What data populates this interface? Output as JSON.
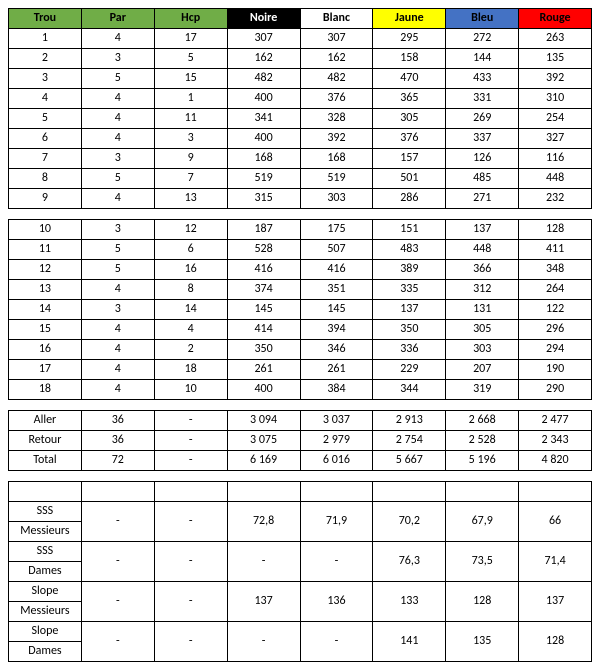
{
  "colors": {
    "green": "#70ad47",
    "black": "#000000",
    "white": "#ffffff",
    "yellow": "#ffff00",
    "blue": "#4472c4",
    "red": "#ff0000"
  },
  "headers": {
    "trou": {
      "label": "Trou",
      "bg": "#70ad47",
      "fg": "#000000"
    },
    "par": {
      "label": "Par",
      "bg": "#70ad47",
      "fg": "#000000"
    },
    "hcp": {
      "label": "Hcp",
      "bg": "#70ad47",
      "fg": "#000000"
    },
    "noire": {
      "label": "Noire",
      "bg": "#000000",
      "fg": "#ffffff"
    },
    "blanc": {
      "label": "Blanc",
      "bg": "#ffffff",
      "fg": "#000000"
    },
    "jaune": {
      "label": "Jaune",
      "bg": "#ffff00",
      "fg": "#000000"
    },
    "bleu": {
      "label": "Bleu",
      "bg": "#4472c4",
      "fg": "#000000"
    },
    "rouge": {
      "label": "Rouge",
      "bg": "#ff0000",
      "fg": "#000000"
    }
  },
  "front9": [
    {
      "trou": "1",
      "par": "4",
      "hcp": "17",
      "noire": "307",
      "blanc": "307",
      "jaune": "295",
      "bleu": "272",
      "rouge": "263"
    },
    {
      "trou": "2",
      "par": "3",
      "hcp": "5",
      "noire": "162",
      "blanc": "162",
      "jaune": "158",
      "bleu": "144",
      "rouge": "135"
    },
    {
      "trou": "3",
      "par": "5",
      "hcp": "15",
      "noire": "482",
      "blanc": "482",
      "jaune": "470",
      "bleu": "433",
      "rouge": "392"
    },
    {
      "trou": "4",
      "par": "4",
      "hcp": "1",
      "noire": "400",
      "blanc": "376",
      "jaune": "365",
      "bleu": "331",
      "rouge": "310"
    },
    {
      "trou": "5",
      "par": "4",
      "hcp": "11",
      "noire": "341",
      "blanc": "328",
      "jaune": "305",
      "bleu": "269",
      "rouge": "254"
    },
    {
      "trou": "6",
      "par": "4",
      "hcp": "3",
      "noire": "400",
      "blanc": "392",
      "jaune": "376",
      "bleu": "337",
      "rouge": "327"
    },
    {
      "trou": "7",
      "par": "3",
      "hcp": "9",
      "noire": "168",
      "blanc": "168",
      "jaune": "157",
      "bleu": "126",
      "rouge": "116"
    },
    {
      "trou": "8",
      "par": "5",
      "hcp": "7",
      "noire": "519",
      "blanc": "519",
      "jaune": "501",
      "bleu": "485",
      "rouge": "448"
    },
    {
      "trou": "9",
      "par": "4",
      "hcp": "13",
      "noire": "315",
      "blanc": "303",
      "jaune": "286",
      "bleu": "271",
      "rouge": "232"
    }
  ],
  "back9": [
    {
      "trou": "10",
      "par": "3",
      "hcp": "12",
      "noire": "187",
      "blanc": "175",
      "jaune": "151",
      "bleu": "137",
      "rouge": "128"
    },
    {
      "trou": "11",
      "par": "5",
      "hcp": "6",
      "noire": "528",
      "blanc": "507",
      "jaune": "483",
      "bleu": "448",
      "rouge": "411"
    },
    {
      "trou": "12",
      "par": "5",
      "hcp": "16",
      "noire": "416",
      "blanc": "416",
      "jaune": "389",
      "bleu": "366",
      "rouge": "348"
    },
    {
      "trou": "13",
      "par": "4",
      "hcp": "8",
      "noire": "374",
      "blanc": "351",
      "jaune": "335",
      "bleu": "312",
      "rouge": "264"
    },
    {
      "trou": "14",
      "par": "3",
      "hcp": "14",
      "noire": "145",
      "blanc": "145",
      "jaune": "137",
      "bleu": "131",
      "rouge": "122"
    },
    {
      "trou": "15",
      "par": "4",
      "hcp": "4",
      "noire": "414",
      "blanc": "394",
      "jaune": "350",
      "bleu": "305",
      "rouge": "296"
    },
    {
      "trou": "16",
      "par": "4",
      "hcp": "2",
      "noire": "350",
      "blanc": "346",
      "jaune": "336",
      "bleu": "303",
      "rouge": "294"
    },
    {
      "trou": "17",
      "par": "4",
      "hcp": "18",
      "noire": "261",
      "blanc": "261",
      "jaune": "229",
      "bleu": "207",
      "rouge": "190"
    },
    {
      "trou": "18",
      "par": "4",
      "hcp": "10",
      "noire": "400",
      "blanc": "384",
      "jaune": "344",
      "bleu": "319",
      "rouge": "290"
    }
  ],
  "totals": [
    {
      "label": "Aller",
      "par": "36",
      "hcp": "-",
      "noire": "3 094",
      "blanc": "3 037",
      "jaune": "2 913",
      "bleu": "2 668",
      "rouge": "2 477"
    },
    {
      "label": "Retour",
      "par": "36",
      "hcp": "-",
      "noire": "3 075",
      "blanc": "2 979",
      "jaune": "2 754",
      "bleu": "2 528",
      "rouge": "2 343"
    },
    {
      "label": "Total",
      "par": "72",
      "hcp": "-",
      "noire": "6 169",
      "blanc": "6 016",
      "jaune": "5 667",
      "bleu": "5 196",
      "rouge": "4 820"
    }
  ],
  "ratings": [
    {
      "label1": "SSS",
      "label2": "Messieurs",
      "par": "-",
      "hcp": "-",
      "noire": "72,8",
      "blanc": "71,9",
      "jaune": "70,2",
      "bleu": "67,9",
      "rouge": "66"
    },
    {
      "label1": "SSS",
      "label2": "Dames",
      "par": "-",
      "hcp": "-",
      "noire": "-",
      "blanc": "-",
      "jaune": "76,3",
      "bleu": "73,5",
      "rouge": "71,4"
    },
    {
      "label1": "Slope",
      "label2": "Messieurs",
      "par": "-",
      "hcp": "-",
      "noire": "137",
      "blanc": "136",
      "jaune": "133",
      "bleu": "128",
      "rouge": "137"
    },
    {
      "label1": "Slope",
      "label2": "Dames",
      "par": "-",
      "hcp": "-",
      "noire": "-",
      "blanc": "-",
      "jaune": "141",
      "bleu": "135",
      "rouge": "128"
    }
  ]
}
